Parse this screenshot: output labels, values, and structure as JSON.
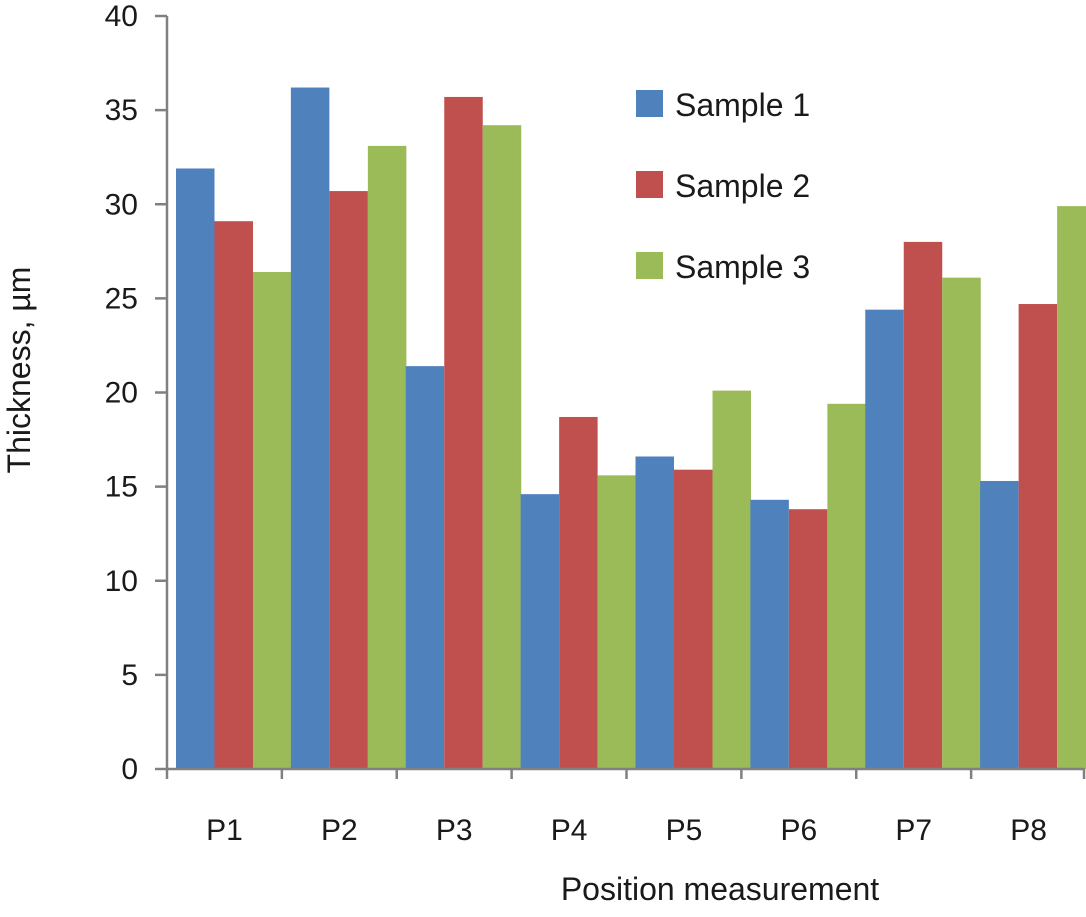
{
  "chart_data": {
    "type": "bar",
    "title": "",
    "xlabel": "Position measurement",
    "ylabel": "Thickness, µm",
    "ylim": [
      0,
      40
    ],
    "yticks": [
      0,
      5,
      10,
      15,
      20,
      25,
      30,
      35,
      40
    ],
    "categories": [
      "P1",
      "P2",
      "P3",
      "P4",
      "P5",
      "P6",
      "P7",
      "P8"
    ],
    "series": [
      {
        "name": "Sample 1",
        "color": "#4f81bd",
        "values": [
          31.9,
          36.2,
          21.4,
          14.6,
          16.6,
          14.3,
          24.4,
          15.3
        ]
      },
      {
        "name": "Sample 2",
        "color": "#c0504d",
        "values": [
          29.1,
          30.7,
          35.7,
          18.7,
          15.9,
          13.8,
          28.0,
          24.7
        ]
      },
      {
        "name": "Sample 3",
        "color": "#9bbb59",
        "values": [
          26.4,
          33.1,
          34.2,
          15.6,
          20.1,
          19.4,
          26.1,
          29.9
        ]
      }
    ],
    "grid": false,
    "legend": "top-right"
  }
}
